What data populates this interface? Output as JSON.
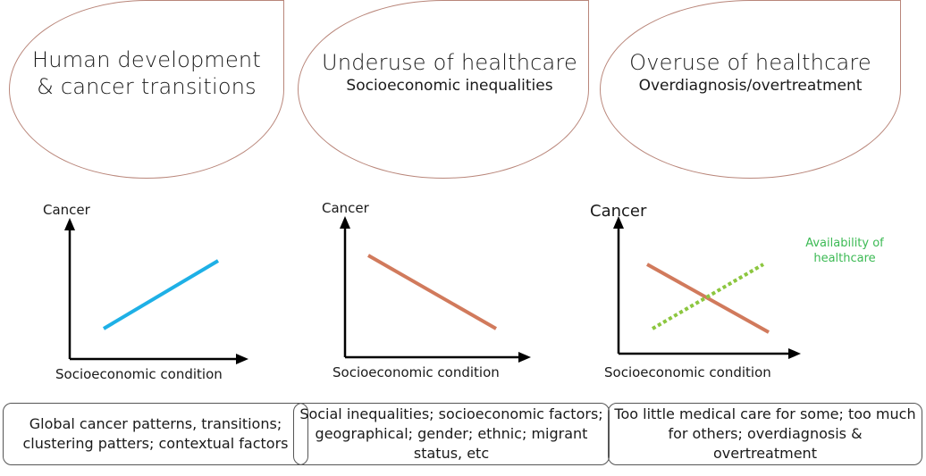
{
  "panels": [
    {
      "title_line1": "Human development",
      "title_line2": "& cancer transitions",
      "ylabel": "Cancer",
      "xlabel": "Socioeconomic condition",
      "box": "Global cancer patterns, transitions; clustering patters; contextual factors",
      "line_color": "#1eb0e6",
      "trend": "increasing"
    },
    {
      "title": "Underuse of healthcare",
      "subtitle": "Socioeconomic inequalities",
      "ylabel": "Cancer",
      "xlabel": "Socioeconomic condition",
      "box": "Social inequalities; socioeconomic factors; geographical; gender; ethnic; migrant status, etc",
      "line_color": "#d17a5c",
      "trend": "decreasing"
    },
    {
      "title": "Overuse of healthcare",
      "subtitle": "Overdiagnosis/overtreatment",
      "ylabel": "Cancer",
      "xlabel": "Socioeconomic condition",
      "annotation": "Availability of healthcare",
      "box": "Too little medical care for some; too much for others; overdiagnosis & overtreatment",
      "line_color": "#d17a5c",
      "dotted_color": "#8cc63f",
      "trend": "crossing"
    }
  ],
  "colors": {
    "bubble_border": "#b9867a",
    "axis": "#000000",
    "annotation": "#3cba54"
  }
}
